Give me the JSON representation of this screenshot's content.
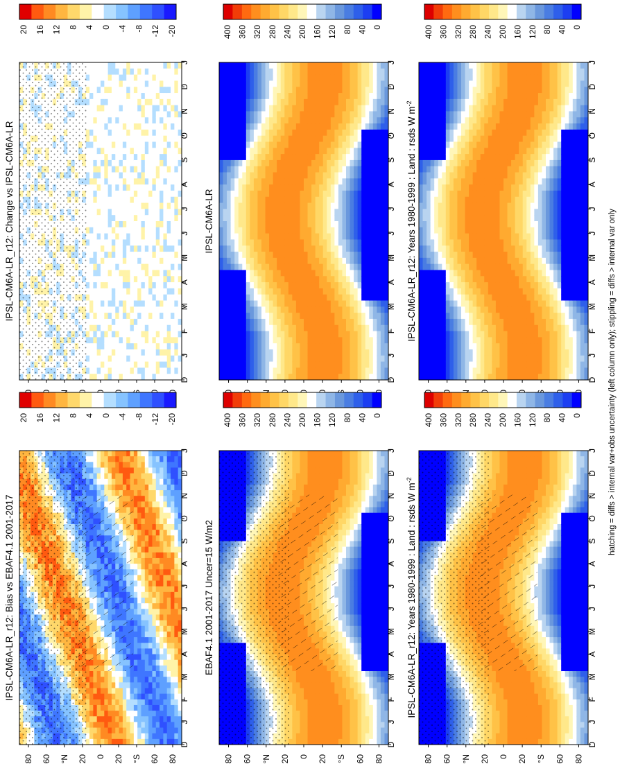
{
  "footer": {
    "note": "hatching = diffs > internal var+obs uncertainty (left column only); stippling = diffs > internal var only"
  },
  "colors": {
    "abs_scale": [
      "#0000ff",
      "#1c3ef2",
      "#2e5fea",
      "#4a7de2",
      "#6a98dd",
      "#8fb6e6",
      "#b9d4f0",
      "#ffffff",
      "#fff6b8",
      "#ffe88a",
      "#ffd766",
      "#ffc247",
      "#ffaa30",
      "#ff8e1e",
      "#ff6a10",
      "#f23d08",
      "#dd0000"
    ],
    "diff_scale": [
      "#1a1aff",
      "#2f50ff",
      "#3f76ff",
      "#5ea0ff",
      "#86c3ff",
      "#b4deff",
      "#ffffff",
      "#fff3a8",
      "#ffd86b",
      "#ffb640",
      "#ff8a22",
      "#ff5a10",
      "#e00000"
    ]
  },
  "chart_data": [
    {
      "type": "heatmap",
      "title": "IPSL-CM6A-LR_r12: Years 1980-1999 : Land : rsds W m",
      "title_sup": "-2",
      "x_ticks": [
        "D",
        "J",
        "F",
        "M",
        "A",
        "M",
        "J",
        "J",
        "A",
        "S",
        "O",
        "N",
        "D",
        "J"
      ],
      "y_ticks": [
        "80",
        "60",
        "°N",
        "20",
        "0",
        "20",
        "°S",
        "60",
        "80"
      ],
      "colorbar_ticks": [
        "400",
        "360",
        "320",
        "280",
        "240",
        "200",
        "160",
        "120",
        "80",
        "40",
        "0"
      ],
      "scale": "abs",
      "overlay": "none"
    },
    {
      "type": "heatmap",
      "title": "IPSL-CM6A-LR",
      "x_ticks": [
        "D",
        "J",
        "F",
        "M",
        "A",
        "M",
        "J",
        "J",
        "A",
        "S",
        "O",
        "N",
        "D",
        "J"
      ],
      "y_ticks": [
        "80",
        "60",
        "°N",
        "20",
        "0",
        "20",
        "°S",
        "60",
        "80"
      ],
      "colorbar_ticks": [
        "400",
        "360",
        "320",
        "280",
        "240",
        "200",
        "160",
        "120",
        "80",
        "40",
        "0"
      ],
      "scale": "abs",
      "overlay": "none"
    },
    {
      "type": "heatmap",
      "title": "IPSL-CM6A-LR_r12: Change vs IPSL-CM6A-LR",
      "x_ticks": [
        "D",
        "J",
        "F",
        "M",
        "A",
        "M",
        "J",
        "J",
        "A",
        "S",
        "O",
        "N",
        "D",
        "J"
      ],
      "y_ticks": [
        "80",
        "60",
        "°N",
        "20",
        "0",
        "20",
        "°S",
        "60",
        "80"
      ],
      "colorbar_ticks": [
        "20",
        "16",
        "12",
        "8",
        "4",
        "0",
        "-4",
        "-8",
        "-12",
        "-20"
      ],
      "scale": "diff",
      "overlay": "stipple"
    },
    {
      "type": "heatmap",
      "title": "IPSL-CM6A-LR_r12: Years 1980-1999 : Land : rsds W m",
      "title_sup": "-2",
      "x_ticks": [
        "D",
        "J",
        "F",
        "M",
        "A",
        "M",
        "J",
        "J",
        "A",
        "S",
        "O",
        "N",
        "D",
        "J"
      ],
      "y_ticks": [
        "80",
        "60",
        "°N",
        "20",
        "0",
        "20",
        "°S",
        "60",
        "80"
      ],
      "colorbar_ticks": [
        "400",
        "360",
        "320",
        "280",
        "240",
        "200",
        "160",
        "120",
        "80",
        "40",
        "0"
      ],
      "scale": "abs",
      "overlay": "both"
    },
    {
      "type": "heatmap",
      "title": "EBAF4.1 2001-2017 Uncer=15 W/m2",
      "x_ticks": [
        "D",
        "J",
        "F",
        "M",
        "A",
        "M",
        "J",
        "J",
        "A",
        "S",
        "O",
        "N",
        "D",
        "J"
      ],
      "y_ticks": [
        "80",
        "60",
        "°N",
        "20",
        "0",
        "20",
        "°S",
        "60",
        "80"
      ],
      "colorbar_ticks": [
        "400",
        "360",
        "320",
        "280",
        "240",
        "200",
        "160",
        "120",
        "80",
        "40",
        "0"
      ],
      "scale": "abs",
      "overlay": "both"
    },
    {
      "type": "heatmap",
      "title": "IPSL-CM6A-LR_r12: Bias vs EBAF4.1 2001-2017",
      "x_ticks": [
        "D",
        "J",
        "F",
        "M",
        "A",
        "M",
        "J",
        "J",
        "A",
        "S",
        "O",
        "N",
        "D",
        "J"
      ],
      "y_ticks": [
        "80",
        "60",
        "°N",
        "20",
        "0",
        "20",
        "°S",
        "60",
        "80"
      ],
      "colorbar_ticks": [
        "20",
        "16",
        "12",
        "8",
        "4",
        "0",
        "-4",
        "-8",
        "-12",
        "-20"
      ],
      "scale": "diff",
      "overlay": "both"
    }
  ]
}
